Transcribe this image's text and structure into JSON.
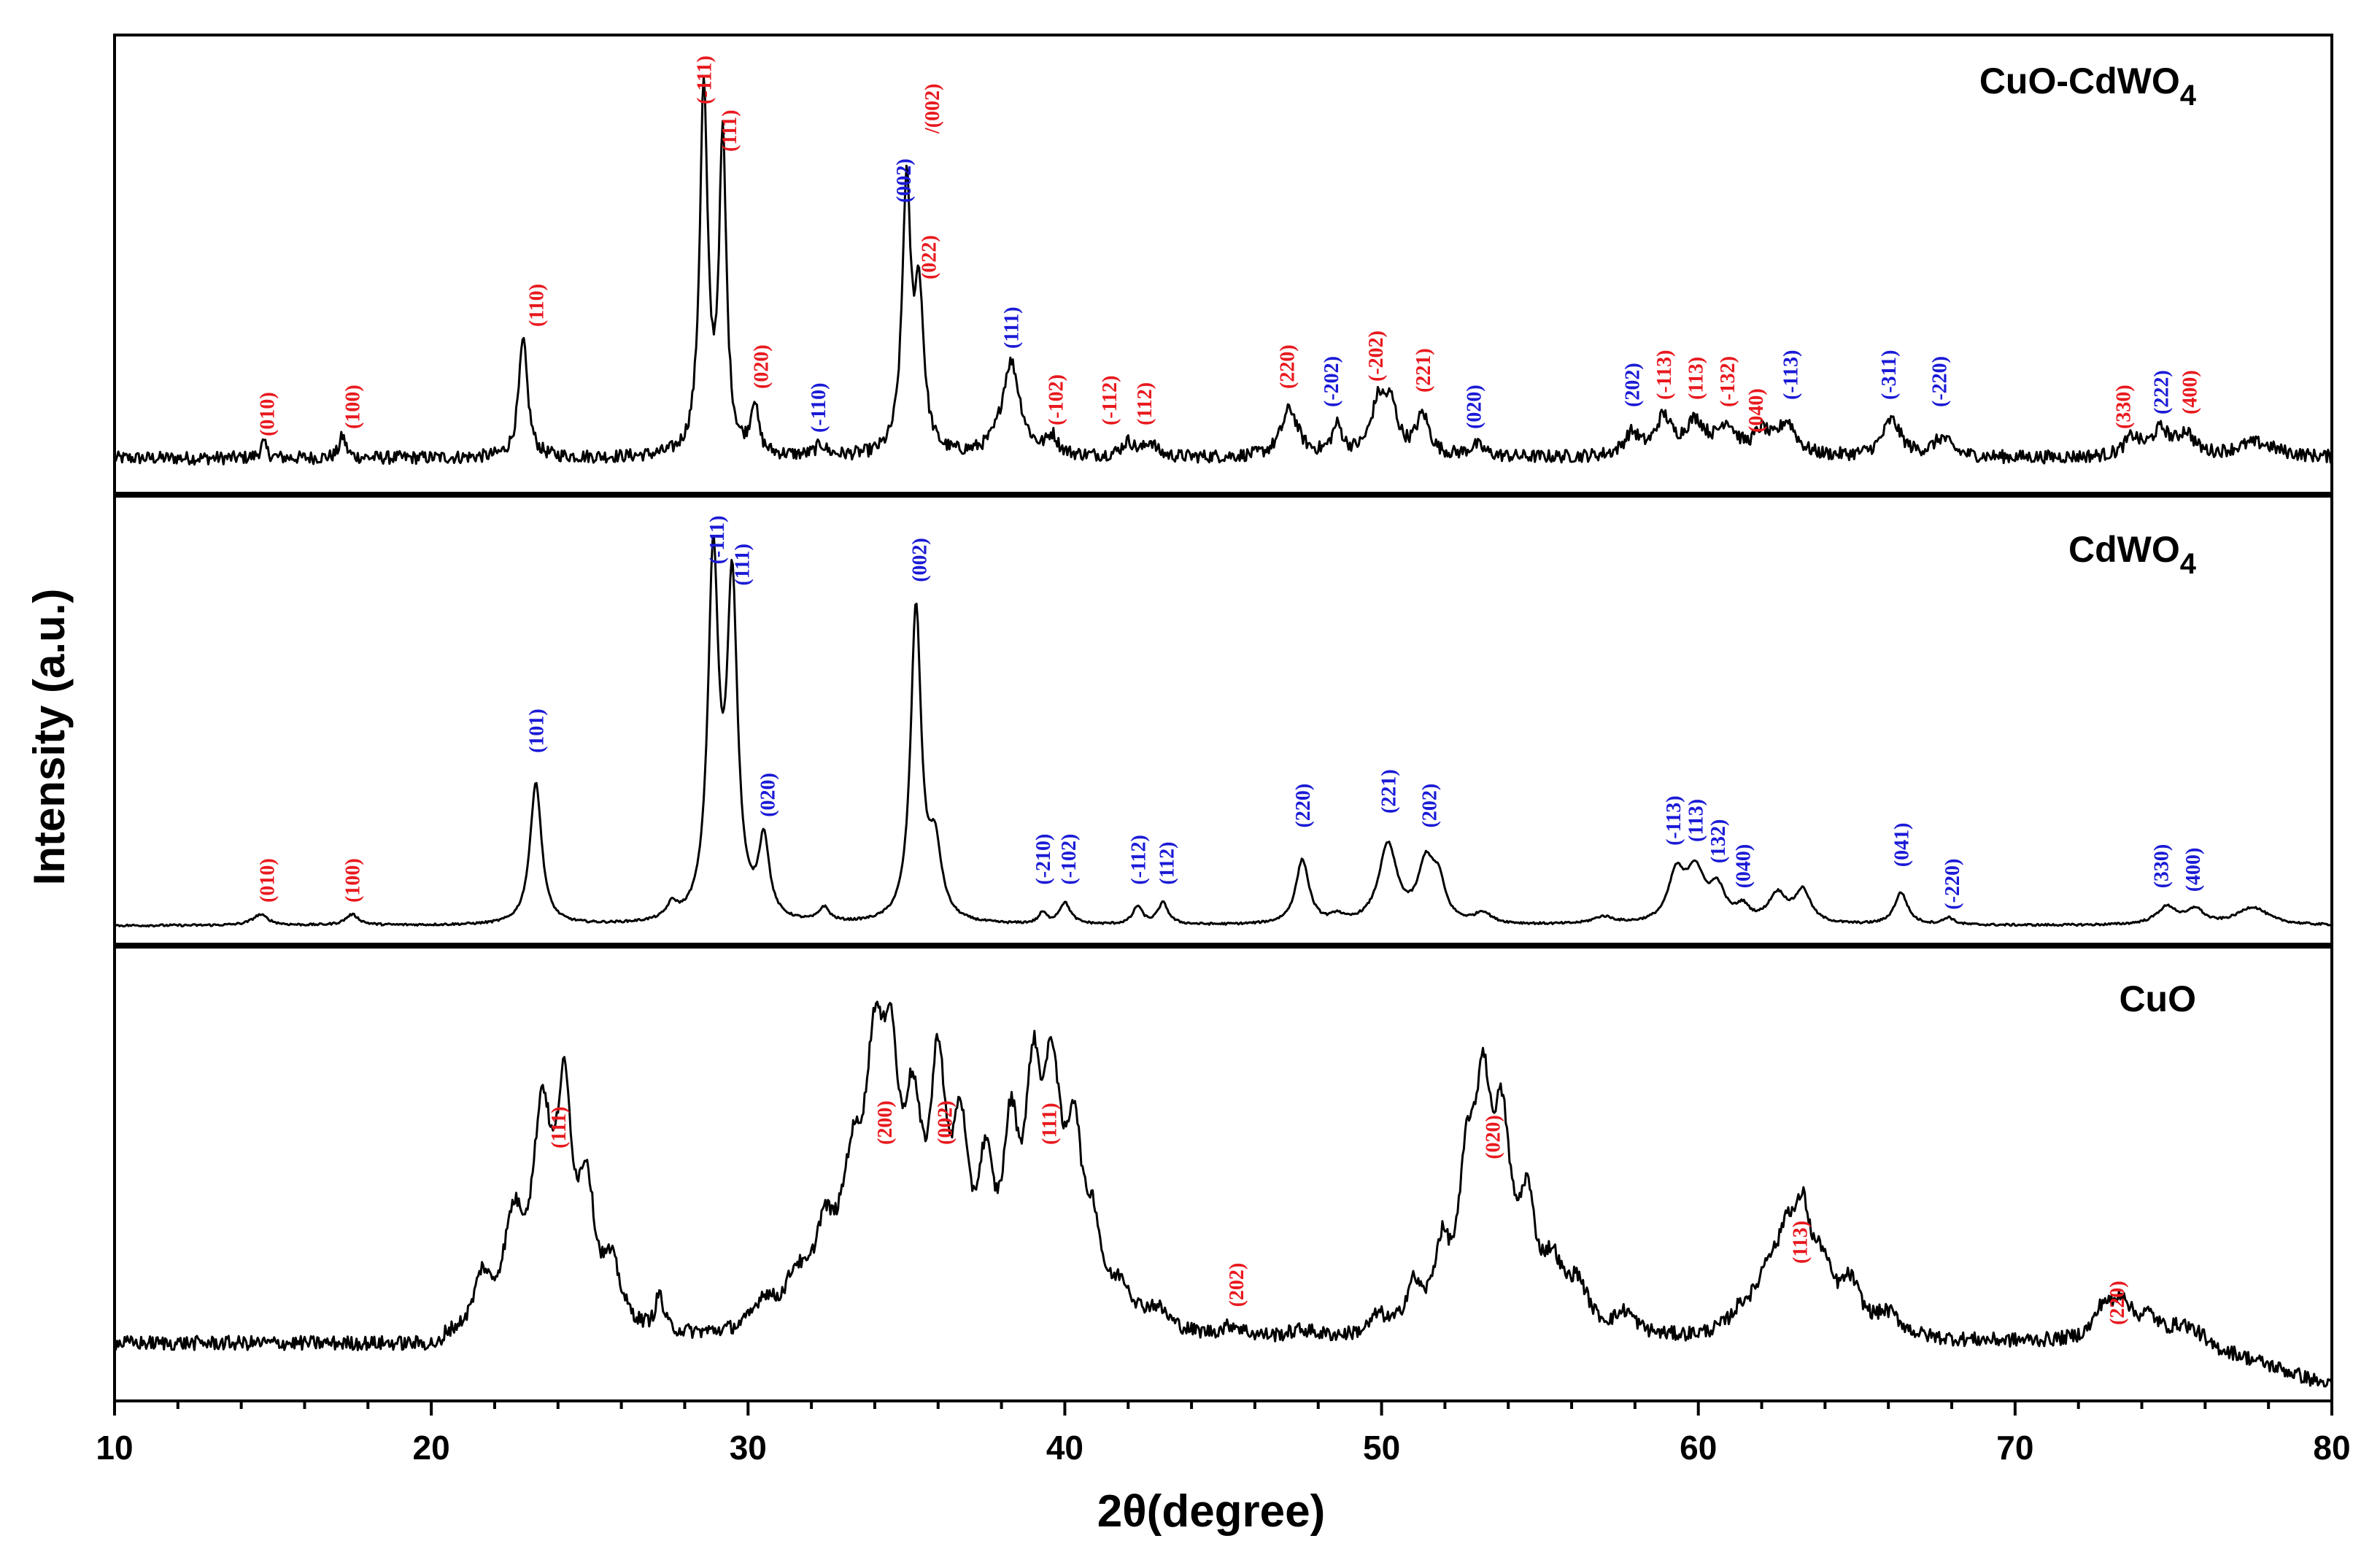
{
  "colors": {
    "red_label": "#e8191e",
    "blue_label": "#1a1ad6",
    "line": "#000000"
  },
  "chart_data": {
    "type": "line",
    "xlabel": "2θ(degree)",
    "ylabel": "Intensity (a.u.)",
    "xlim": [
      10,
      80
    ],
    "xticks": [
      "10",
      "20",
      "30",
      "40",
      "50",
      "60",
      "70",
      "80"
    ],
    "panels": [
      {
        "name": "CuO-CdWO4",
        "title": "CuO-CdWO",
        "title_sub": "4",
        "baseline": 0.06,
        "noise": 0.018,
        "peaks": [
          [
            14.7,
            0.04,
            0.12
          ],
          [
            17.2,
            0.06,
            0.12
          ],
          [
            22.9,
            0.32,
            0.17
          ],
          [
            28.6,
            1.0,
            0.15
          ],
          [
            29.2,
            0.85,
            0.14
          ],
          [
            30.2,
            0.14,
            0.14
          ],
          [
            32.3,
            0.03,
            0.2
          ],
          [
            35.0,
            0.72,
            0.16
          ],
          [
            35.4,
            0.42,
            0.18
          ],
          [
            38.3,
            0.26,
            0.35
          ],
          [
            39.6,
            0.05,
            0.2
          ],
          [
            42.0,
            0.04,
            0.25
          ],
          [
            42.7,
            0.04,
            0.2
          ],
          [
            47.1,
            0.13,
            0.32
          ],
          [
            48.6,
            0.08,
            0.2
          ],
          [
            49.9,
            0.14,
            0.28
          ],
          [
            50.3,
            0.12,
            0.25
          ],
          [
            51.3,
            0.11,
            0.25
          ],
          [
            53.0,
            0.03,
            0.3
          ],
          [
            57.9,
            0.06,
            0.3
          ],
          [
            58.9,
            0.1,
            0.3
          ],
          [
            59.9,
            0.09,
            0.4
          ],
          [
            60.9,
            0.08,
            0.35
          ],
          [
            62.0,
            0.06,
            0.3
          ],
          [
            62.8,
            0.09,
            0.35
          ],
          [
            66.1,
            0.1,
            0.35
          ],
          [
            67.7,
            0.05,
            0.35
          ],
          [
            73.7,
            0.05,
            0.3
          ],
          [
            74.6,
            0.07,
            0.35
          ],
          [
            75.4,
            0.06,
            0.3
          ],
          [
            77.6,
            0.04,
            0.8
          ]
        ],
        "labels": [
          {
            "x": 14.8,
            "y": 0.12,
            "text": "(010)",
            "color": "red"
          },
          {
            "x": 17.5,
            "y": 0.14,
            "text": "(100)",
            "color": "red"
          },
          {
            "x": 23.3,
            "y": 0.42,
            "text": "(110)",
            "color": "red"
          },
          {
            "x": 28.6,
            "y": 1.03,
            "text": "(-111)",
            "color": "red"
          },
          {
            "x": 29.4,
            "y": 0.9,
            "text": "(111)",
            "color": "red"
          },
          {
            "x": 30.4,
            "y": 0.25,
            "text": "(020)",
            "color": "red"
          },
          {
            "x": 32.2,
            "y": 0.13,
            "text": "(-110)",
            "color": "blue"
          },
          {
            "x": 34.9,
            "y": 0.76,
            "text": "(002)",
            "color": "blue"
          },
          {
            "x": 35.8,
            "y": 0.95,
            "text": "/(002)",
            "color": "red"
          },
          {
            "x": 35.7,
            "y": 0.55,
            "text": "(022)",
            "color": "red"
          },
          {
            "x": 38.3,
            "y": 0.36,
            "text": "(111)",
            "color": "blue"
          },
          {
            "x": 39.7,
            "y": 0.15,
            "text": "(-102)",
            "color": "red"
          },
          {
            "x": 41.4,
            "y": 0.15,
            "text": "(-112)",
            "color": "red"
          },
          {
            "x": 42.5,
            "y": 0.15,
            "text": "(112)",
            "color": "red"
          },
          {
            "x": 47.0,
            "y": 0.25,
            "text": "(220)",
            "color": "red"
          },
          {
            "x": 48.4,
            "y": 0.2,
            "text": "(-202)",
            "color": "blue"
          },
          {
            "x": 49.8,
            "y": 0.27,
            "text": "(-202)",
            "color": "red"
          },
          {
            "x": 51.3,
            "y": 0.24,
            "text": "(221)",
            "color": "red"
          },
          {
            "x": 52.9,
            "y": 0.14,
            "text": "(020)",
            "color": "blue"
          },
          {
            "x": 57.9,
            "y": 0.2,
            "text": "(202)",
            "color": "blue"
          },
          {
            "x": 58.9,
            "y": 0.22,
            "text": "(-113)",
            "color": "red"
          },
          {
            "x": 59.9,
            "y": 0.22,
            "text": "(113)",
            "color": "red"
          },
          {
            "x": 60.9,
            "y": 0.2,
            "text": "(-132)",
            "color": "red"
          },
          {
            "x": 61.8,
            "y": 0.13,
            "text": "(040)",
            "color": "red"
          },
          {
            "x": 62.9,
            "y": 0.22,
            "text": "(-113)",
            "color": "blue"
          },
          {
            "x": 66.0,
            "y": 0.22,
            "text": "(-311)",
            "color": "blue"
          },
          {
            "x": 67.6,
            "y": 0.2,
            "text": "(-220)",
            "color": "blue"
          },
          {
            "x": 73.4,
            "y": 0.14,
            "text": "(330)",
            "color": "red"
          },
          {
            "x": 74.6,
            "y": 0.18,
            "text": "(222)",
            "color": "blue"
          },
          {
            "x": 75.5,
            "y": 0.18,
            "text": "(400)",
            "color": "red"
          }
        ]
      },
      {
        "name": "CdWO4",
        "title": "CdWO",
        "title_sub": "4",
        "baseline": 0.015,
        "noise": 0.003,
        "peaks": [
          [
            14.6,
            0.03,
            0.3
          ],
          [
            17.5,
            0.03,
            0.25
          ],
          [
            23.3,
            0.4,
            0.22
          ],
          [
            27.6,
            0.04,
            0.2
          ],
          [
            28.9,
            1.0,
            0.2
          ],
          [
            29.5,
            0.92,
            0.2
          ],
          [
            30.5,
            0.22,
            0.2
          ],
          [
            32.4,
            0.04,
            0.2
          ],
          [
            35.3,
            0.88,
            0.2
          ],
          [
            35.9,
            0.2,
            0.25
          ],
          [
            39.3,
            0.03,
            0.15
          ],
          [
            40.0,
            0.06,
            0.22
          ],
          [
            42.3,
            0.05,
            0.18
          ],
          [
            43.1,
            0.06,
            0.2
          ],
          [
            47.5,
            0.18,
            0.25
          ],
          [
            48.6,
            0.02,
            0.2
          ],
          [
            50.2,
            0.22,
            0.35
          ],
          [
            51.4,
            0.16,
            0.3
          ],
          [
            51.8,
            0.1,
            0.25
          ],
          [
            53.2,
            0.03,
            0.3
          ],
          [
            57.0,
            0.02,
            0.4
          ],
          [
            59.3,
            0.13,
            0.3
          ],
          [
            59.9,
            0.14,
            0.35
          ],
          [
            60.6,
            0.09,
            0.3
          ],
          [
            61.4,
            0.04,
            0.25
          ],
          [
            62.5,
            0.08,
            0.35
          ],
          [
            63.3,
            0.09,
            0.3
          ],
          [
            66.4,
            0.09,
            0.25
          ],
          [
            67.9,
            0.02,
            0.2
          ],
          [
            74.8,
            0.05,
            0.4
          ],
          [
            75.7,
            0.04,
            0.3
          ],
          [
            77.5,
            0.05,
            0.6
          ]
        ],
        "labels": [
          {
            "x": 14.8,
            "y": 0.08,
            "text": "(010)",
            "color": "red"
          },
          {
            "x": 17.5,
            "y": 0.08,
            "text": "(100)",
            "color": "red"
          },
          {
            "x": 23.3,
            "y": 0.5,
            "text": "(101)",
            "color": "blue"
          },
          {
            "x": 29.0,
            "y": 1.03,
            "text": "(-111)",
            "color": "blue"
          },
          {
            "x": 29.8,
            "y": 0.97,
            "text": "(111)",
            "color": "blue"
          },
          {
            "x": 30.6,
            "y": 0.32,
            "text": "(020)",
            "color": "blue"
          },
          {
            "x": 35.4,
            "y": 0.98,
            "text": "(002)",
            "color": "blue"
          },
          {
            "x": 39.3,
            "y": 0.13,
            "text": "(-210)",
            "color": "blue"
          },
          {
            "x": 40.1,
            "y": 0.13,
            "text": "(-102)",
            "color": "blue"
          },
          {
            "x": 42.3,
            "y": 0.13,
            "text": "(-112)",
            "color": "blue"
          },
          {
            "x": 43.2,
            "y": 0.13,
            "text": "(112)",
            "color": "blue"
          },
          {
            "x": 47.5,
            "y": 0.29,
            "text": "(220)",
            "color": "blue"
          },
          {
            "x": 50.2,
            "y": 0.33,
            "text": "(221)",
            "color": "blue"
          },
          {
            "x": 51.5,
            "y": 0.29,
            "text": "(202)",
            "color": "blue"
          },
          {
            "x": 59.2,
            "y": 0.24,
            "text": "(-113)",
            "color": "blue"
          },
          {
            "x": 59.9,
            "y": 0.25,
            "text": "(113)",
            "color": "blue"
          },
          {
            "x": 60.6,
            "y": 0.19,
            "text": "(132)",
            "color": "blue"
          },
          {
            "x": 61.4,
            "y": 0.12,
            "text": "(040)",
            "color": "blue"
          },
          {
            "x": 66.4,
            "y": 0.18,
            "text": "(041)",
            "color": "blue"
          },
          {
            "x": 68.0,
            "y": 0.06,
            "text": "(-220)",
            "color": "blue"
          },
          {
            "x": 74.6,
            "y": 0.12,
            "text": "(330)",
            "color": "blue"
          },
          {
            "x": 75.6,
            "y": 0.11,
            "text": "(400)",
            "color": "blue"
          }
        ]
      },
      {
        "name": "CuO",
        "title": "CuO",
        "title_sub": "",
        "baseline": 0.12,
        "noise": 0.02,
        "peaks": [
          [
            21.6,
            0.14,
            0.3
          ],
          [
            22.6,
            0.28,
            0.4
          ],
          [
            23.5,
            0.55,
            0.35
          ],
          [
            24.2,
            0.58,
            0.3
          ],
          [
            24.9,
            0.35,
            0.3
          ],
          [
            25.7,
            0.16,
            0.35
          ],
          [
            27.2,
            0.1,
            0.15
          ],
          [
            30.5,
            0.08,
            0.4
          ],
          [
            31.5,
            0.12,
            0.4
          ],
          [
            32.4,
            0.22,
            0.4
          ],
          [
            33.3,
            0.36,
            0.45
          ],
          [
            34.0,
            0.6,
            0.35
          ],
          [
            34.5,
            0.55,
            0.3
          ],
          [
            35.2,
            0.48,
            0.35
          ],
          [
            36.0,
            0.62,
            0.3
          ],
          [
            36.7,
            0.45,
            0.3
          ],
          [
            37.5,
            0.36,
            0.3
          ],
          [
            38.3,
            0.45,
            0.3
          ],
          [
            39.0,
            0.55,
            0.3
          ],
          [
            39.6,
            0.6,
            0.35
          ],
          [
            40.3,
            0.45,
            0.3
          ],
          [
            40.9,
            0.22,
            0.3
          ],
          [
            41.8,
            0.1,
            0.4
          ],
          [
            42.9,
            0.06,
            0.5
          ],
          [
            45.3,
            0.03,
            0.4
          ],
          [
            47.5,
            0.02,
            0.5
          ],
          [
            49.9,
            0.05,
            0.3
          ],
          [
            51.0,
            0.12,
            0.3
          ],
          [
            51.9,
            0.2,
            0.3
          ],
          [
            52.7,
            0.38,
            0.3
          ],
          [
            53.2,
            0.55,
            0.3
          ],
          [
            53.8,
            0.5,
            0.35
          ],
          [
            54.6,
            0.3,
            0.3
          ],
          [
            55.4,
            0.16,
            0.4
          ],
          [
            56.2,
            0.12,
            0.4
          ],
          [
            57.7,
            0.06,
            0.4
          ],
          [
            61.4,
            0.06,
            0.5
          ],
          [
            62.2,
            0.14,
            0.4
          ],
          [
            62.8,
            0.22,
            0.35
          ],
          [
            63.3,
            0.26,
            0.3
          ],
          [
            63.9,
            0.16,
            0.4
          ],
          [
            64.8,
            0.13,
            0.4
          ],
          [
            66.0,
            0.06,
            0.5
          ],
          [
            72.8,
            0.09,
            0.35
          ],
          [
            73.4,
            0.1,
            0.3
          ],
          [
            74.2,
            0.06,
            0.4
          ],
          [
            75.3,
            0.04,
            0.5
          ]
        ],
        "labels": [
          {
            "x": 24.0,
            "y": 0.66,
            "text": "(111)",
            "color": "red"
          },
          {
            "x": 34.3,
            "y": 0.67,
            "text": "(200)",
            "color": "red"
          },
          {
            "x": 36.2,
            "y": 0.67,
            "text": "(002)",
            "color": "red"
          },
          {
            "x": 39.5,
            "y": 0.67,
            "text": "(111)",
            "color": "red"
          },
          {
            "x": 45.4,
            "y": 0.22,
            "text": "(202)",
            "color": "red"
          },
          {
            "x": 53.5,
            "y": 0.63,
            "text": "(020)",
            "color": "red"
          },
          {
            "x": 63.2,
            "y": 0.34,
            "text": "(113)",
            "color": "red"
          },
          {
            "x": 73.2,
            "y": 0.17,
            "text": "(220)",
            "color": "red"
          }
        ]
      }
    ]
  }
}
